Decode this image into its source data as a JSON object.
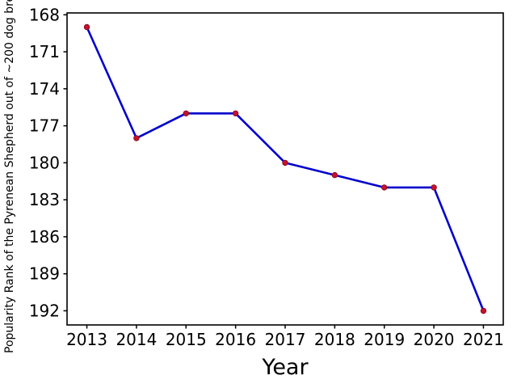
{
  "figure": {
    "xlabel": "Year",
    "ylabel": "Popularity Rank of the Pyrenean Shepherd out of ~200 dog bre",
    "background_color": "#ffffff"
  },
  "chart_data": {
    "type": "line",
    "x": [
      2013,
      2014,
      2015,
      2016,
      2017,
      2018,
      2019,
      2020,
      2021
    ],
    "series": [
      {
        "name": "",
        "values": [
          169,
          178,
          176,
          176,
          180,
          181,
          182,
          182,
          192
        ]
      }
    ],
    "title": "",
    "xlabel": "Year",
    "ylabel": "Popularity Rank of the Pyrenean Shepherd out of ~200 dog bre",
    "xticks": [
      2013,
      2014,
      2015,
      2016,
      2017,
      2018,
      2019,
      2020,
      2021
    ],
    "yticks": [
      168,
      171,
      174,
      177,
      180,
      183,
      186,
      189,
      192
    ],
    "xlim": [
      2012.6,
      2021.4
    ],
    "ylim": [
      193.15,
      167.85
    ],
    "y_axis_inverted": true,
    "grid": false,
    "legend": false,
    "line_color": "#0000cd",
    "marker_color": "#c8102e",
    "marker_edge_color": "#7c0d1e",
    "axis_color": "#000000",
    "tick_label_color": "#000000"
  }
}
